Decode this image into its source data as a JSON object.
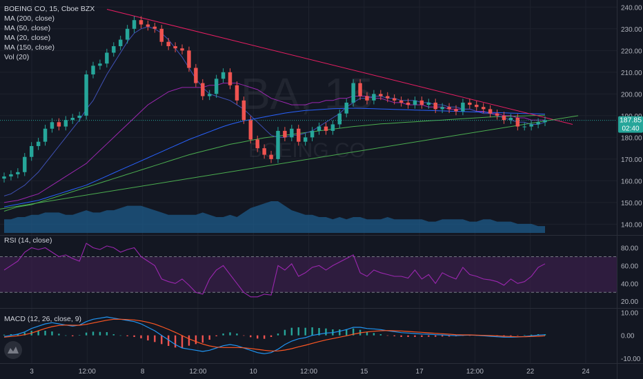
{
  "colors": {
    "background": "#131722",
    "grid": "#1e222d",
    "text": "#b2b5be",
    "up": "#26a69a",
    "down": "#ef5350",
    "ma200": "#4caf50",
    "ma50": "#9c27b0",
    "ma20": "#3f51b5",
    "ma150": "#2962ff",
    "trend_upper": "#e91e63",
    "rsi_line": "#9c27b0",
    "rsi_band": "#3a1f4a",
    "macd_line": "#2196f3",
    "signal_line": "#ff5722",
    "volume": "#1e5b8a",
    "price_tag": "#26a69a"
  },
  "watermark": {
    "symbol": "BA, 15",
    "name": "BOEING CO"
  },
  "legend": [
    "BOEING CO, 15, Cboe BZX",
    "MA (200, close)",
    "MA (50, close)",
    "MA (20, close)",
    "MA (150, close)",
    "Vol (20)"
  ],
  "price_tag": {
    "price": "187.85",
    "countdown": "02:40"
  },
  "rsi_title": "RSI (14, close)",
  "macd_title": "MACD (12, 26, close, 9)",
  "logo_icon": "tradingview-cloud-icon",
  "chart_data": [
    {
      "type": "candlestick",
      "title": "BOEING CO, 15, Cboe BZX",
      "x_ticks": [
        "3",
        "12:00",
        "8",
        "12:00",
        "10",
        "12:00",
        "15",
        "17",
        "12:00",
        "22",
        "24"
      ],
      "y_ticks": [
        140,
        150,
        160,
        170,
        180,
        190,
        200,
        210,
        220,
        230,
        240
      ],
      "ylim": [
        136,
        242
      ],
      "close": [
        162,
        163,
        164,
        171,
        176,
        178,
        184,
        187,
        185,
        188,
        189,
        190,
        209,
        213,
        214,
        219,
        222,
        225,
        230,
        234,
        232,
        231,
        230,
        224,
        222,
        221,
        220,
        212,
        205,
        199,
        200,
        207,
        210,
        204,
        197,
        188,
        179,
        175,
        172,
        170,
        183,
        180,
        184,
        178,
        180,
        183,
        185,
        183,
        186,
        191,
        196,
        205,
        199,
        197,
        200,
        199,
        198,
        197,
        196,
        195,
        197,
        195,
        196,
        193,
        194,
        193,
        192,
        196,
        195,
        194,
        193,
        191,
        190,
        188,
        189,
        185,
        185,
        186,
        187,
        187.85
      ],
      "moving_averages": [
        {
          "name": "MA (200, close)",
          "values": [
            146,
            147,
            148,
            148.5,
            149,
            150,
            151,
            152,
            153,
            154,
            155,
            156,
            157,
            158,
            159,
            160,
            161,
            162,
            163,
            164,
            165,
            166,
            167,
            168,
            169,
            170,
            171,
            172,
            172.8,
            173.6,
            174.4,
            175.2,
            176,
            176.8,
            177.4,
            178,
            178.6,
            179.2,
            179.8,
            180.2,
            180.6,
            181,
            181.4,
            181.8,
            182.2,
            182.6,
            183,
            183.4,
            183.8,
            184.2,
            184.6,
            185,
            185.3,
            185.6,
            185.9,
            186.2,
            186.4,
            186.6,
            186.8,
            187,
            187.2,
            187.4,
            187.6,
            187.8,
            188,
            188.2,
            188.4,
            188.6,
            188.8,
            189,
            189.2,
            189.4,
            189.5,
            189.6,
            189.7,
            189.8,
            189.9,
            190,
            190.1,
            190.2
          ]
        },
        {
          "name": "MA (50, close)",
          "values": [
            150,
            150.5,
            151,
            152,
            153,
            154,
            156,
            158,
            160,
            162,
            164,
            166,
            168,
            171,
            174,
            177,
            180,
            183,
            186,
            189,
            192,
            195,
            197,
            199,
            201,
            202,
            203,
            203,
            203,
            203,
            204,
            204,
            205,
            205,
            205,
            204,
            203,
            202,
            200,
            198,
            197,
            196,
            195,
            195,
            195,
            196,
            196,
            197,
            197,
            198,
            198,
            199,
            199,
            199,
            198,
            198,
            197,
            196,
            196,
            195,
            195,
            195,
            194,
            194,
            194,
            193,
            193,
            193,
            193,
            192,
            192,
            191,
            191,
            190,
            190,
            189,
            189,
            188,
            188,
            188
          ]
        },
        {
          "name": "MA (20, close)",
          "values": [
            153,
            154,
            156,
            158,
            161,
            164,
            168,
            172,
            176,
            180,
            184,
            188,
            193,
            197,
            203,
            209,
            214,
            219,
            224,
            228,
            230,
            231,
            230,
            228,
            225,
            221,
            217,
            212,
            207,
            203,
            200,
            199,
            198,
            197,
            195,
            193,
            190,
            187,
            184,
            181,
            180,
            180,
            181,
            181,
            182,
            183,
            185,
            187,
            189,
            191,
            194,
            196,
            198,
            198,
            199,
            199,
            198,
            198,
            197,
            197,
            197,
            196,
            196,
            195,
            195,
            194,
            194,
            193,
            193,
            192,
            191,
            191,
            190,
            189,
            188,
            187,
            187,
            186,
            186,
            187
          ]
        },
        {
          "name": "MA (150, close)",
          "values": [
            148,
            148.6,
            149.2,
            149.8,
            150.4,
            151,
            152,
            153,
            154,
            155,
            156,
            157,
            158,
            159.4,
            160.8,
            162.2,
            163.6,
            165,
            166.4,
            167.8,
            169.2,
            170.6,
            172,
            173.4,
            174.8,
            176.2,
            177.6,
            179,
            180.2,
            181.4,
            182.6,
            183.8,
            185,
            186,
            186.8,
            187.6,
            188.2,
            188.8,
            189.4,
            190,
            190.6,
            191.2,
            191.6,
            192,
            192.4,
            192.6,
            192.8,
            193,
            193.2,
            193.3,
            193.4,
            193.4,
            193.4,
            193.3,
            193.2,
            193.1,
            193,
            192.9,
            192.8,
            192.7,
            192.6,
            192.5,
            192.4,
            192.3,
            192.2,
            192.1,
            192,
            191.9,
            191.8,
            191.7,
            191.6,
            191.5,
            191.4,
            191.3,
            191.2,
            191.1,
            191,
            190.9,
            190.8,
            190.7
          ]
        }
      ],
      "volume": [
        6,
        6,
        7,
        7,
        8,
        8,
        9,
        9,
        9,
        8,
        8,
        9,
        10,
        9,
        9,
        10,
        10,
        11,
        12,
        12,
        12,
        11,
        10,
        9,
        8,
        8,
        8,
        8,
        8,
        9,
        8,
        7,
        7,
        8,
        7,
        9,
        11,
        12,
        13,
        14,
        14,
        12,
        10,
        9,
        8,
        8,
        7,
        7,
        6,
        7,
        6,
        7,
        7,
        6,
        6,
        6,
        7,
        6,
        6,
        6,
        6,
        6,
        5,
        5,
        6,
        6,
        6,
        6,
        5,
        5,
        6,
        6,
        5,
        5,
        5,
        4,
        4,
        4,
        3,
        3
      ]
    },
    {
      "type": "line",
      "title": "RSI (14, close)",
      "y_ticks": [
        20,
        40,
        60,
        80
      ],
      "ylim": [
        14,
        92
      ],
      "bands": [
        30,
        70
      ],
      "values": [
        55,
        60,
        65,
        75,
        80,
        78,
        80,
        75,
        70,
        72,
        68,
        65,
        85,
        80,
        78,
        82,
        80,
        75,
        78,
        80,
        70,
        65,
        60,
        45,
        42,
        40,
        45,
        38,
        30,
        28,
        45,
        55,
        60,
        50,
        40,
        30,
        25,
        25,
        28,
        27,
        60,
        55,
        62,
        48,
        52,
        58,
        60,
        55,
        60,
        64,
        68,
        72,
        52,
        48,
        55,
        52,
        50,
        48,
        48,
        46,
        55,
        45,
        50,
        40,
        52,
        48,
        45,
        58,
        50,
        48,
        45,
        44,
        42,
        38,
        45,
        40,
        42,
        48,
        58,
        62
      ]
    },
    {
      "type": "line",
      "title": "MACD (12, 26, close, 9)",
      "y_ticks": [
        -10,
        0,
        10
      ],
      "ylim": [
        -11.5,
        11
      ],
      "macd": [
        -0.5,
        0,
        0.5,
        1.5,
        3,
        4,
        5,
        5.5,
        5,
        4.5,
        4,
        4.5,
        6,
        7,
        7.5,
        8,
        7.5,
        7,
        6.5,
        6,
        5,
        3.5,
        2,
        0,
        -2,
        -4,
        -5.5,
        -6,
        -6.5,
        -7,
        -6.5,
        -5.5,
        -4.5,
        -4,
        -4.5,
        -5.5,
        -6.5,
        -7.5,
        -8,
        -7.5,
        -6,
        -4,
        -2.5,
        -1.5,
        -1,
        0,
        0.5,
        1,
        1.2,
        1.8,
        2.5,
        3.5,
        3.5,
        3,
        2.8,
        2.5,
        2,
        1.6,
        1.2,
        1,
        0.8,
        0.6,
        0.5,
        0.3,
        0.2,
        0,
        -0.1,
        0,
        0.1,
        0,
        -0.2,
        -0.4,
        -0.6,
        -0.8,
        -0.8,
        -0.7,
        -0.5,
        -0.2,
        0.1,
        0.3
      ],
      "signal": [
        -0.8,
        -0.5,
        -0.2,
        0.3,
        1,
        2,
        3,
        3.8,
        4.3,
        4.5,
        4.4,
        4.4,
        4.8,
        5.4,
        6,
        6.6,
        7,
        7,
        6.9,
        6.7,
        6.3,
        5.7,
        4.9,
        3.8,
        2.6,
        1.3,
        -0.1,
        -1.5,
        -2.7,
        -3.8,
        -4.6,
        -5.1,
        -5.3,
        -5.3,
        -5.3,
        -5.4,
        -5.7,
        -6.1,
        -6.5,
        -6.8,
        -6.8,
        -6.4,
        -5.8,
        -5,
        -4.3,
        -3.5,
        -2.7,
        -2,
        -1.4,
        -0.8,
        -0.2,
        0.5,
        1.1,
        1.5,
        1.8,
        2,
        2.1,
        2,
        1.9,
        1.7,
        1.5,
        1.3,
        1.1,
        0.9,
        0.7,
        0.5,
        0.3,
        0.2,
        0.2,
        0.1,
        0,
        -0.1,
        -0.2,
        -0.4,
        -0.5,
        -0.6,
        -0.6,
        -0.5,
        -0.4,
        -0.2
      ]
    }
  ]
}
